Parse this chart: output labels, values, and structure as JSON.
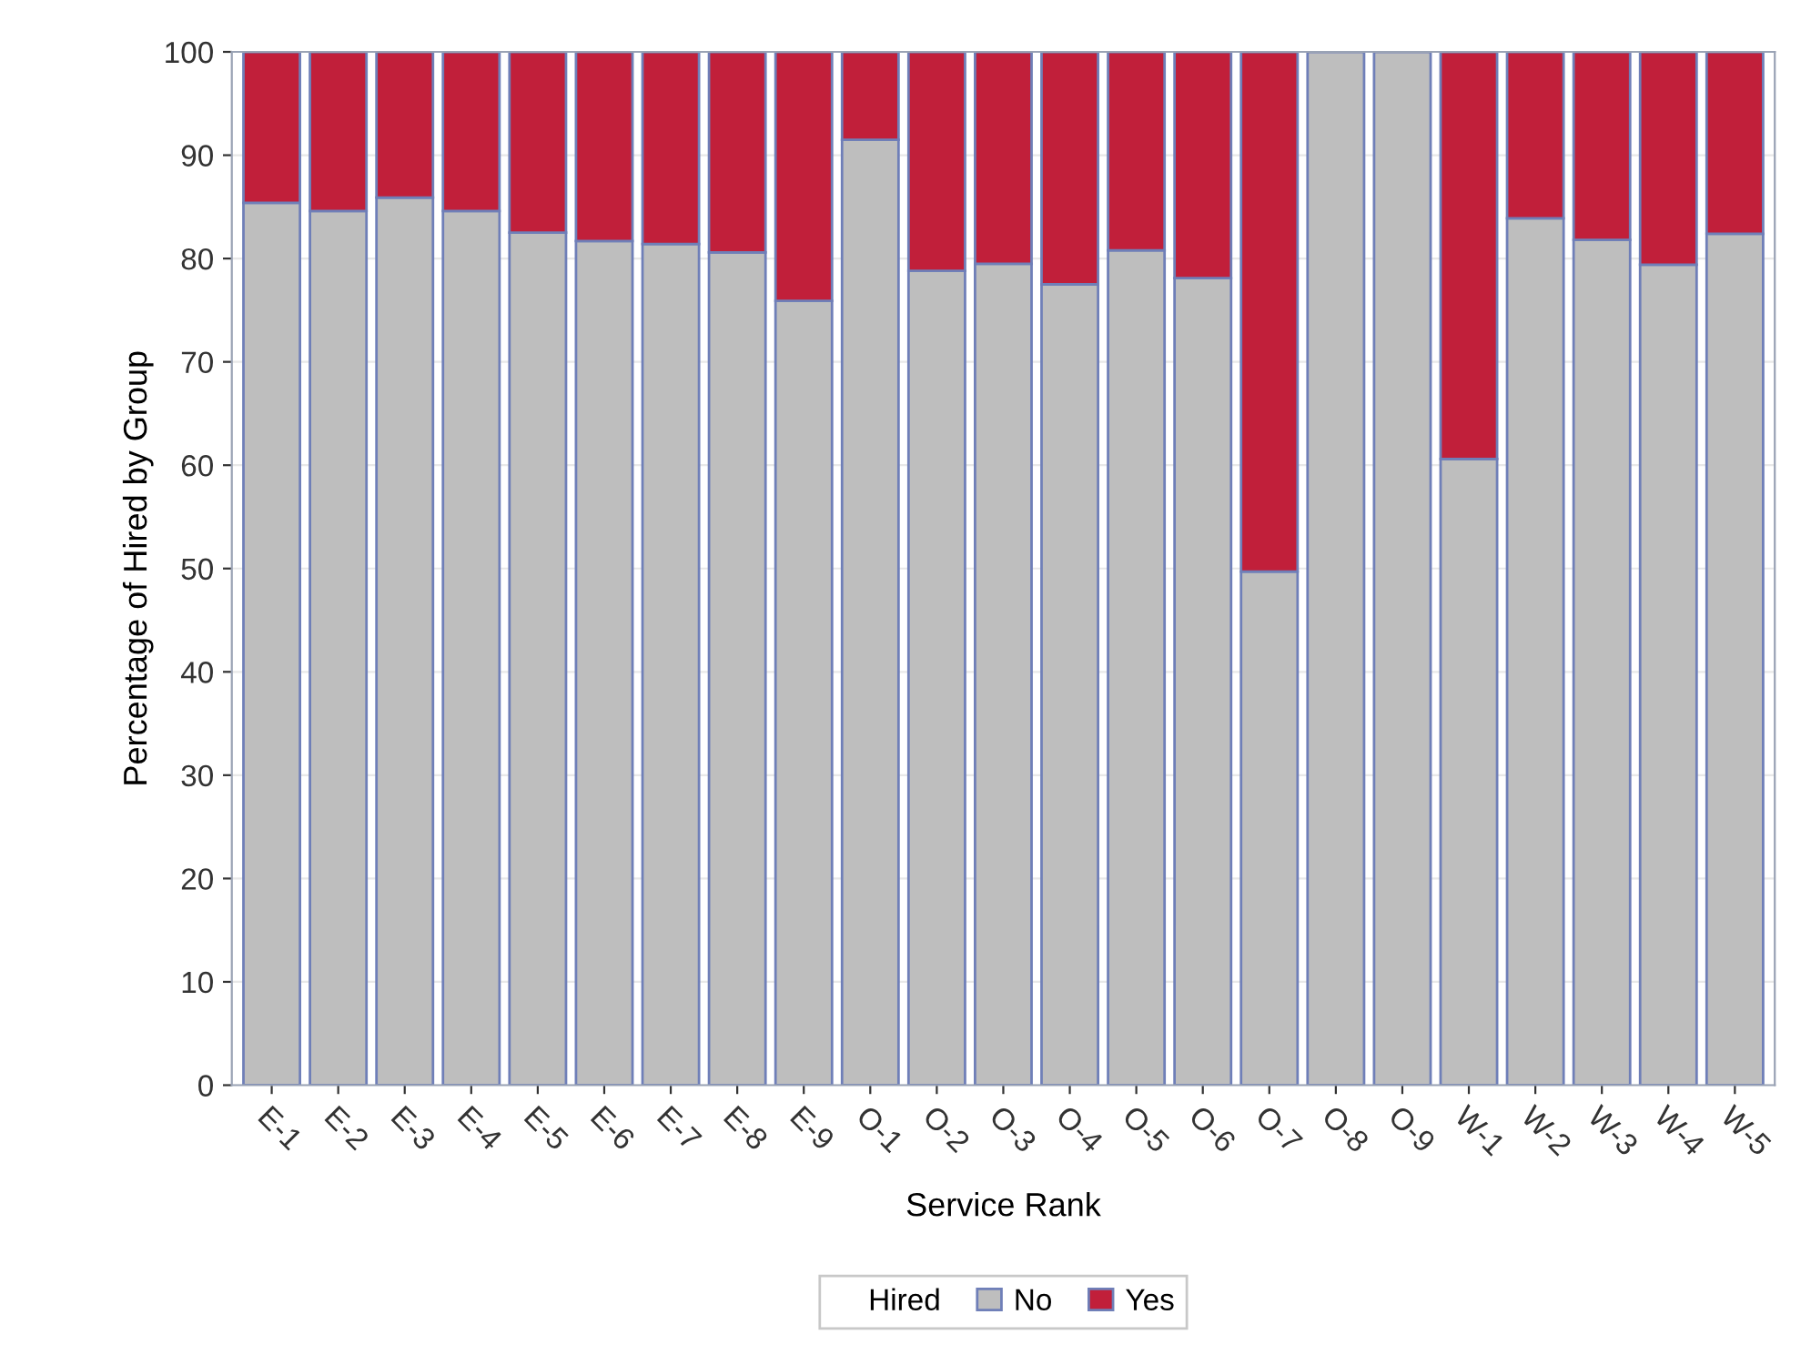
{
  "chart_data": {
    "type": "bar",
    "stacked": true,
    "xlabel": "Service Rank",
    "ylabel": "Percentage of Hired by Group",
    "legend_title": "Hired",
    "legend": "bottom",
    "grid": "y",
    "categories": [
      "E-1",
      "E-2",
      "E-3",
      "E-4",
      "E-5",
      "E-6",
      "E-7",
      "E-8",
      "E-9",
      "O-1",
      "O-2",
      "O-3",
      "O-4",
      "O-5",
      "O-6",
      "O-7",
      "O-8",
      "O-9",
      "W-1",
      "W-2",
      "W-3",
      "W-4",
      "W-5"
    ],
    "series": [
      {
        "name": "No",
        "color": "#bebebe",
        "values": [
          85.4,
          84.6,
          85.9,
          84.6,
          82.5,
          81.7,
          81.4,
          80.6,
          75.9,
          91.5,
          78.8,
          79.5,
          77.5,
          80.8,
          78.1,
          49.7,
          100,
          100,
          60.6,
          83.9,
          81.8,
          79.4,
          82.4
        ]
      },
      {
        "name": "Yes",
        "color": "#c11f3a",
        "values": [
          14.6,
          15.4,
          14.1,
          15.4,
          17.5,
          18.3,
          18.6,
          19.4,
          24.1,
          8.5,
          21.2,
          20.5,
          22.5,
          19.2,
          21.9,
          50.3,
          null,
          null,
          39.4,
          16.1,
          18.2,
          20.6,
          17.6
        ]
      }
    ],
    "ylim": [
      0,
      100
    ],
    "yticks": [
      0,
      10,
      20,
      30,
      40,
      50,
      60,
      70,
      80,
      90,
      100
    ]
  }
}
